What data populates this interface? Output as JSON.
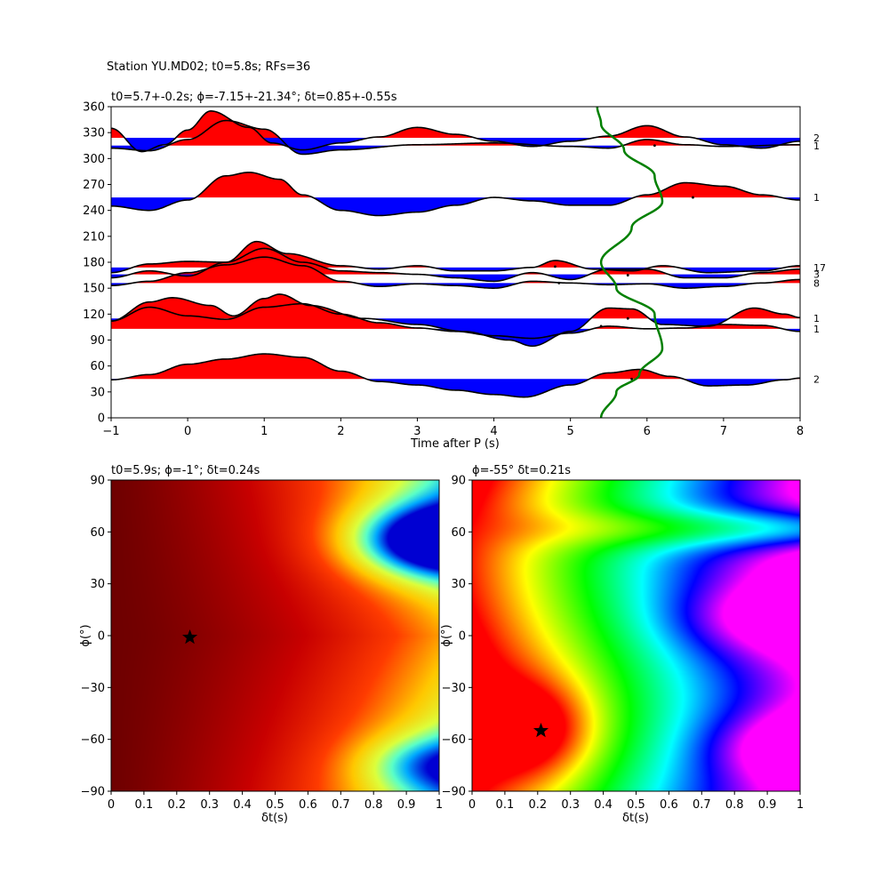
{
  "figure": {
    "suptitle": "Station YU.MD02; t0=5.8s; RFs=36"
  },
  "chart_data": [
    {
      "type": "line",
      "id": "receiver-functions",
      "title": "t0=5.7+-0.2s; ϕ=-7.15+-21.34°; δt=0.85+-0.55s",
      "xlabel": "Time after P (s)",
      "ylabel": "",
      "xlim": [
        -1,
        8
      ],
      "ylim": [
        0,
        360
      ],
      "xticks": [
        -1,
        0,
        1,
        2,
        3,
        4,
        5,
        6,
        7,
        8
      ],
      "yticks": [
        0,
        30,
        60,
        90,
        120,
        150,
        180,
        210,
        240,
        270,
        300,
        330,
        360
      ],
      "fill_colors": {
        "positive": "#ff0000",
        "negative": "#0000ff"
      },
      "line_color": "#000000",
      "series": [
        {
          "baseline": 315,
          "count_label": "1",
          "samples": [
            [
              -1,
              312
            ],
            [
              -0.5,
              309
            ],
            [
              0,
              322
            ],
            [
              0.5,
              344
            ],
            [
              1,
              334
            ],
            [
              1.5,
              305
            ],
            [
              2,
              310
            ],
            [
              3,
              316
            ],
            [
              4,
              318
            ],
            [
              5,
              314
            ],
            [
              5.5,
              312
            ],
            [
              6,
              322
            ],
            [
              6.5,
              316
            ],
            [
              7,
              314
            ],
            [
              8,
              316
            ]
          ]
        },
        {
          "baseline": 324,
          "count_label": "2",
          "samples": [
            [
              -1,
              335
            ],
            [
              -0.6,
              308
            ],
            [
              -0.3,
              316
            ],
            [
              0,
              333
            ],
            [
              0.3,
              355
            ],
            [
              0.8,
              336
            ],
            [
              1.1,
              318
            ],
            [
              1.5,
              310
            ],
            [
              2,
              318
            ],
            [
              2.5,
              325
            ],
            [
              3,
              336
            ],
            [
              3.5,
              328
            ],
            [
              4,
              320
            ],
            [
              4.5,
              314
            ],
            [
              5,
              320
            ],
            [
              5.5,
              326
            ],
            [
              6,
              338
            ],
            [
              6.5,
              325
            ],
            [
              7,
              316
            ],
            [
              7.5,
              312
            ],
            [
              8,
              320
            ]
          ]
        },
        {
          "baseline": 255,
          "count_label": "1",
          "samples": [
            [
              -1,
              245
            ],
            [
              -0.5,
              240
            ],
            [
              0,
              252
            ],
            [
              0.5,
              280
            ],
            [
              0.8,
              284
            ],
            [
              1.2,
              276
            ],
            [
              1.5,
              258
            ],
            [
              2,
              240
            ],
            [
              2.5,
              234
            ],
            [
              3,
              238
            ],
            [
              3.5,
              246
            ],
            [
              4,
              255
            ],
            [
              4.5,
              251
            ],
            [
              5,
              246
            ],
            [
              5.5,
              246
            ],
            [
              6,
              258
            ],
            [
              6.5,
              272
            ],
            [
              7,
              268
            ],
            [
              7.5,
              258
            ],
            [
              8,
              252
            ]
          ]
        },
        {
          "baseline": 156,
          "count_label": "8",
          "samples": [
            [
              -1,
              153
            ],
            [
              -0.5,
              158
            ],
            [
              0,
              168
            ],
            [
              0.5,
              177
            ],
            [
              1,
              186
            ],
            [
              1.5,
              176
            ],
            [
              2,
              158
            ],
            [
              2.5,
              152
            ],
            [
              3,
              155
            ],
            [
              3.5,
              153
            ],
            [
              4,
              150
            ],
            [
              4.5,
              158
            ],
            [
              5,
              156
            ],
            [
              5.5,
              154
            ],
            [
              6,
              155
            ],
            [
              6.5,
              150
            ],
            [
              7,
              152
            ],
            [
              7.5,
              156
            ],
            [
              8,
              160
            ]
          ]
        },
        {
          "baseline": 166,
          "count_label": "3",
          "samples": [
            [
              -1,
              162
            ],
            [
              -0.5,
              170
            ],
            [
              0,
              164
            ],
            [
              0.5,
              180
            ],
            [
              1,
              196
            ],
            [
              1.5,
              180
            ],
            [
              2,
              170
            ],
            [
              2.5,
              168
            ],
            [
              3,
              166
            ],
            [
              3.5,
              162
            ],
            [
              4,
              158
            ],
            [
              4.5,
              168
            ],
            [
              5,
              160
            ],
            [
              5.5,
              172
            ],
            [
              6,
              172
            ],
            [
              6.5,
              162
            ],
            [
              7,
              162
            ],
            [
              7.5,
              168
            ],
            [
              8,
              172
            ]
          ]
        },
        {
          "baseline": 174,
          "count_label": "17",
          "samples": [
            [
              -1,
              168
            ],
            [
              -0.5,
              178
            ],
            [
              0,
              181
            ],
            [
              0.5,
              180
            ],
            [
              0.9,
              204
            ],
            [
              1.3,
              190
            ],
            [
              2,
              176
            ],
            [
              2.5,
              172
            ],
            [
              3,
              176
            ],
            [
              3.5,
              170
            ],
            [
              4,
              170
            ],
            [
              4.5,
              174
            ],
            [
              4.8,
              182
            ],
            [
              5.3,
              172
            ],
            [
              5.8,
              170
            ],
            [
              6.2,
              176
            ],
            [
              6.8,
              168
            ],
            [
              7.5,
              170
            ],
            [
              8,
              176
            ]
          ]
        },
        {
          "baseline": 103,
          "count_label": "1",
          "samples": [
            [
              -1,
              112
            ],
            [
              -0.5,
              128
            ],
            [
              0,
              118
            ],
            [
              0.5,
              114
            ],
            [
              1,
              128
            ],
            [
              1.5,
              132
            ],
            [
              2,
              120
            ],
            [
              2.5,
              110
            ],
            [
              3,
              104
            ],
            [
              3.5,
              100
            ],
            [
              4,
              95
            ],
            [
              4.5,
              92
            ],
            [
              5,
              98
            ],
            [
              5.5,
              106
            ],
            [
              6,
              103
            ],
            [
              6.5,
              104
            ],
            [
              7,
              108
            ],
            [
              7.5,
              107
            ],
            [
              8,
              100
            ]
          ]
        },
        {
          "baseline": 115,
          "count_label": "1",
          "samples": [
            [
              -1,
              112
            ],
            [
              -0.5,
              134
            ],
            [
              -0.2,
              139
            ],
            [
              0.3,
              130
            ],
            [
              0.6,
              118
            ],
            [
              1,
              138
            ],
            [
              1.2,
              143
            ],
            [
              1.6,
              130
            ],
            [
              2.3,
              115
            ],
            [
              3,
              108
            ],
            [
              3.6,
              100
            ],
            [
              4.2,
              90
            ],
            [
              4.5,
              83
            ],
            [
              5,
              100
            ],
            [
              5.5,
              127
            ],
            [
              5.8,
              126
            ],
            [
              6.2,
              108
            ],
            [
              6.8,
              106
            ],
            [
              7.4,
              127
            ],
            [
              7.8,
              120
            ],
            [
              8,
              116
            ]
          ]
        },
        {
          "baseline": 45,
          "count_label": "2",
          "samples": [
            [
              -1,
              44
            ],
            [
              -0.5,
              50
            ],
            [
              0,
              62
            ],
            [
              0.5,
              68
            ],
            [
              1,
              74
            ],
            [
              1.5,
              70
            ],
            [
              2,
              54
            ],
            [
              2.5,
              42
            ],
            [
              3,
              38
            ],
            [
              3.5,
              32
            ],
            [
              4,
              27
            ],
            [
              4.4,
              24
            ],
            [
              5,
              38
            ],
            [
              5.5,
              52
            ],
            [
              5.9,
              56
            ],
            [
              6.3,
              48
            ],
            [
              6.8,
              37
            ],
            [
              7.3,
              38
            ],
            [
              7.8,
              44
            ],
            [
              8,
              46
            ]
          ]
        }
      ],
      "marker_dots": [
        [
          4.8,
          175
        ],
        [
          5.75,
          165
        ],
        [
          6.1,
          315
        ],
        [
          4.85,
          156
        ],
        [
          5.4,
          106
        ],
        [
          6.6,
          255
        ],
        [
          5.8,
          45
        ],
        [
          5.75,
          115
        ]
      ],
      "overlay_curve": {
        "color": "#008000",
        "samples": [
          [
            5.4,
            0
          ],
          [
            5.6,
            30
          ],
          [
            5.9,
            50
          ],
          [
            6.2,
            80
          ],
          [
            6.1,
            120
          ],
          [
            5.6,
            150
          ],
          [
            5.4,
            180
          ],
          [
            5.8,
            220
          ],
          [
            6.2,
            250
          ],
          [
            6.1,
            280
          ],
          [
            5.7,
            310
          ],
          [
            5.4,
            340
          ],
          [
            5.35,
            360
          ]
        ]
      }
    },
    {
      "type": "heatmap",
      "id": "energy-map-left",
      "title": "t0=5.9s; ϕ=-1°; δt=0.24s",
      "xlabel": "δt(s)",
      "ylabel": "ϕ(°)",
      "xlim": [
        0,
        1
      ],
      "ylim": [
        -90,
        90
      ],
      "xticks": [
        0,
        0.1,
        0.2,
        0.3,
        0.4,
        0.5,
        0.6,
        0.7,
        0.8,
        0.9,
        1.0
      ],
      "yticks": [
        -90,
        -60,
        -30,
        0,
        30,
        60,
        90
      ],
      "colormap": "hot-to-jet",
      "optimum_marker": {
        "x": 0.24,
        "y": -1
      }
    },
    {
      "type": "heatmap",
      "id": "energy-map-right",
      "title": "ϕ=-55° δt=0.21s",
      "xlabel": "δt(s)",
      "ylabel": "ϕ(°)",
      "xlim": [
        0,
        1
      ],
      "ylim": [
        -90,
        90
      ],
      "xticks": [
        0,
        0.1,
        0.2,
        0.3,
        0.4,
        0.5,
        0.6,
        0.7,
        0.8,
        0.9,
        1.0
      ],
      "yticks": [
        -90,
        -60,
        -30,
        0,
        30,
        60,
        90
      ],
      "colormap": "hsv",
      "optimum_marker": {
        "x": 0.21,
        "y": -55
      }
    }
  ]
}
